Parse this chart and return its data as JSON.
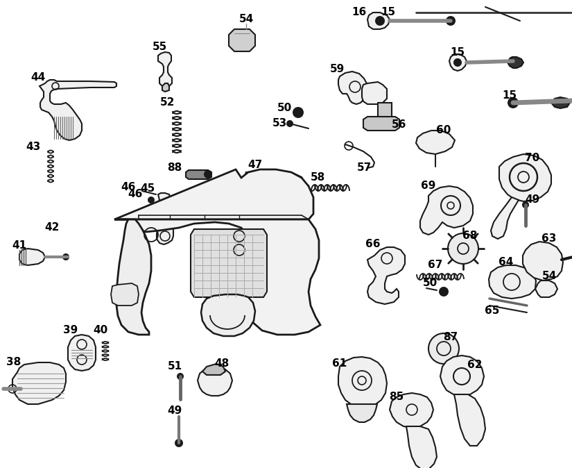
{
  "background_color": "#ffffff",
  "figsize": [
    8.25,
    6.74
  ],
  "dpi": 100,
  "label_color": "#000000",
  "line_color": "#1a1a1a",
  "part_fill": "#f0f0f0",
  "part_stroke": "#1a1a1a"
}
